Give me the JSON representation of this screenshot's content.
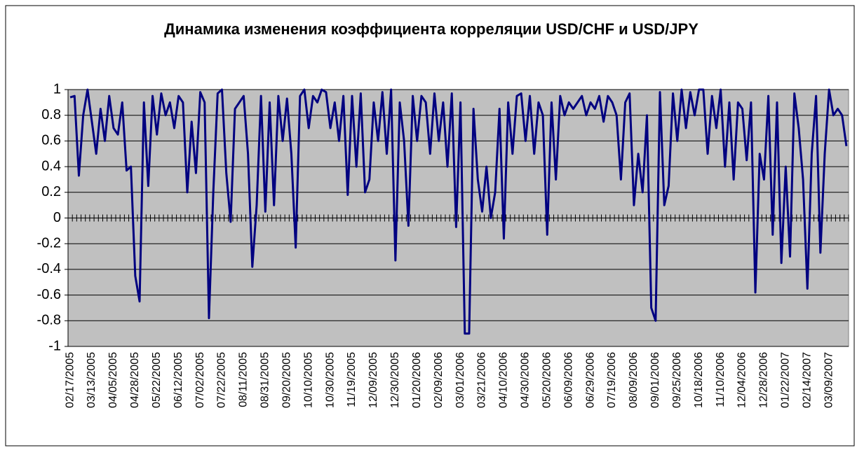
{
  "chart_data": {
    "type": "line",
    "title": "Динамика изменения коэффициента корреляции USD/CHF и USD/JPY",
    "categories": [
      "02/17/2005",
      null,
      null,
      null,
      null,
      "03/13/2005",
      null,
      null,
      null,
      null,
      "04/05/2005",
      null,
      null,
      null,
      null,
      "04/28/2005",
      null,
      null,
      null,
      null,
      "05/22/2005",
      null,
      null,
      null,
      null,
      "06/12/2005",
      null,
      null,
      null,
      null,
      "07/02/2005",
      null,
      null,
      null,
      null,
      "07/22/2005",
      null,
      null,
      null,
      null,
      "08/11/2005",
      null,
      null,
      null,
      null,
      "08/31/2005",
      null,
      null,
      null,
      null,
      "09/20/2005",
      null,
      null,
      null,
      null,
      "10/10/2005",
      null,
      null,
      null,
      null,
      "10/30/2005",
      null,
      null,
      null,
      null,
      "11/19/2005",
      null,
      null,
      null,
      null,
      "12/09/2005",
      null,
      null,
      null,
      null,
      "12/30/2005",
      null,
      null,
      null,
      null,
      "01/20/2006",
      null,
      null,
      null,
      null,
      "02/09/2006",
      null,
      null,
      null,
      null,
      "03/01/2006",
      null,
      null,
      null,
      null,
      "03/21/2006",
      null,
      null,
      null,
      null,
      "04/10/2006",
      null,
      null,
      null,
      null,
      "04/30/2006",
      null,
      null,
      null,
      null,
      "05/20/2006",
      null,
      null,
      null,
      null,
      "06/09/2006",
      null,
      null,
      null,
      null,
      "06/29/2006",
      null,
      null,
      null,
      null,
      "07/19/2006",
      null,
      null,
      null,
      null,
      "08/09/2006",
      null,
      null,
      null,
      null,
      "09/01/2006",
      null,
      null,
      null,
      null,
      "09/25/2006",
      null,
      null,
      null,
      null,
      "10/18/2006",
      null,
      null,
      null,
      null,
      "11/10/2006",
      null,
      null,
      null,
      null,
      "12/04/2006",
      null,
      null,
      null,
      null,
      "12/28/2006",
      null,
      null,
      null,
      null,
      "01/22/2007",
      null,
      null,
      null,
      null,
      "02/14/2007",
      null,
      null,
      null,
      null,
      "03/09/2007",
      null,
      null,
      null,
      null
    ],
    "values": [
      0.94,
      0.95,
      0.33,
      0.8,
      1.0,
      0.75,
      0.5,
      0.85,
      0.6,
      0.95,
      0.7,
      0.65,
      0.9,
      0.37,
      0.4,
      -0.45,
      -0.65,
      0.9,
      0.25,
      0.95,
      0.65,
      0.97,
      0.8,
      0.9,
      0.7,
      0.95,
      0.9,
      0.2,
      0.75,
      0.35,
      0.98,
      0.9,
      -0.78,
      0.2,
      0.97,
      1.0,
      0.35,
      -0.03,
      0.85,
      0.9,
      0.95,
      0.5,
      -0.38,
      0.1,
      0.95,
      0.05,
      0.9,
      0.1,
      0.95,
      0.6,
      0.93,
      0.5,
      -0.23,
      0.95,
      1.0,
      0.7,
      0.95,
      0.9,
      1.0,
      0.98,
      0.7,
      0.9,
      0.6,
      0.95,
      0.18,
      0.95,
      0.4,
      0.97,
      0.2,
      0.3,
      0.9,
      0.6,
      0.98,
      0.5,
      1.0,
      -0.33,
      0.9,
      0.6,
      -0.06,
      0.95,
      0.6,
      0.95,
      0.9,
      0.5,
      0.97,
      0.6,
      0.9,
      0.4,
      0.97,
      -0.07,
      0.9,
      -0.9,
      -0.9,
      0.85,
      0.3,
      0.05,
      0.4,
      0.0,
      0.2,
      0.85,
      -0.16,
      0.9,
      0.5,
      0.95,
      0.97,
      0.6,
      0.95,
      0.5,
      0.9,
      0.8,
      -0.13,
      0.9,
      0.3,
      0.95,
      0.8,
      0.9,
      0.85,
      0.9,
      0.95,
      0.8,
      0.9,
      0.85,
      0.95,
      0.75,
      0.95,
      0.9,
      0.8,
      0.3,
      0.9,
      0.97,
      0.1,
      0.5,
      0.2,
      0.8,
      -0.7,
      -0.8,
      0.98,
      0.1,
      0.25,
      0.97,
      0.6,
      1.0,
      0.7,
      0.98,
      0.8,
      1.0,
      1.0,
      0.5,
      0.95,
      0.7,
      1.0,
      0.4,
      0.9,
      0.3,
      0.9,
      0.85,
      0.45,
      0.9,
      -0.58,
      0.5,
      0.3,
      0.95,
      -0.13,
      0.9,
      -0.35,
      0.4,
      -0.3,
      0.97,
      0.7,
      0.3,
      -0.55,
      0.5,
      0.95,
      -0.27,
      0.5,
      1.0,
      0.8,
      0.85,
      0.8,
      0.56
    ],
    "color": "#000080",
    "ylim": [
      -1,
      1
    ],
    "yticks": [
      -1,
      -0.8,
      -0.6,
      -0.4,
      -0.2,
      0,
      0.2,
      0.4,
      0.6,
      0.8,
      1
    ],
    "grid": true
  }
}
